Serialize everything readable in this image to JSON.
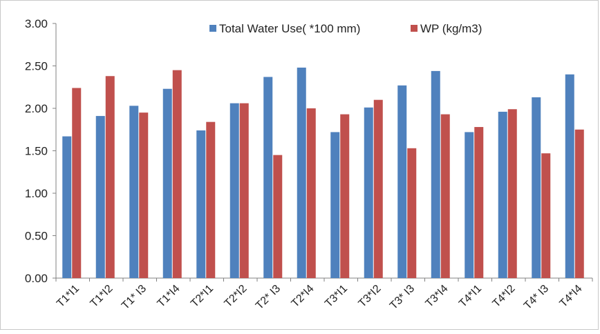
{
  "chart_data": {
    "type": "bar",
    "categories": [
      "T1*I1",
      "T1*I2",
      "T1* I3",
      "T1*I4",
      "T2*I1",
      "T2*I2",
      "T2* I3",
      "T2*I4",
      "T3*I1",
      "T3*I2",
      "T3* I3",
      "T3*I4",
      "T4*I1",
      "T4*I2",
      "T4* I3",
      "T4*I4"
    ],
    "series": [
      {
        "name": "Total Water Use( *100 mm)",
        "color": "#4f81bd",
        "values": [
          1.67,
          1.91,
          2.03,
          2.23,
          1.74,
          2.06,
          2.37,
          2.48,
          1.72,
          2.01,
          2.27,
          2.44,
          1.72,
          1.96,
          2.13,
          2.4
        ]
      },
      {
        "name": "WP (kg/m3)",
        "color": "#c0504d",
        "values": [
          2.24,
          2.38,
          1.95,
          2.45,
          1.84,
          2.06,
          1.45,
          2.0,
          1.93,
          2.1,
          1.53,
          1.93,
          1.78,
          1.99,
          1.47,
          1.75
        ]
      }
    ],
    "yticks": [
      "0.00",
      "0.50",
      "1.00",
      "1.50",
      "2.00",
      "2.50",
      "3.00"
    ],
    "ylim": [
      0,
      3
    ],
    "grid": false,
    "legend": "top"
  }
}
